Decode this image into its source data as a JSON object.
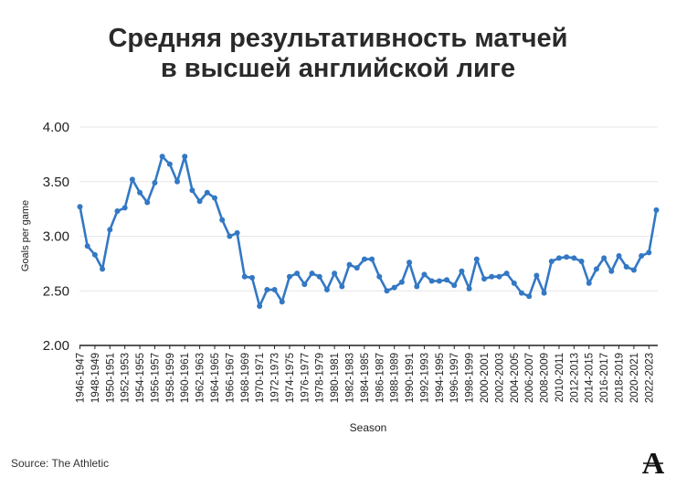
{
  "title_lines": [
    "Средняя результативность матчей",
    "в высшей английской лиге"
  ],
  "source": "Source: The Athletic",
  "logo_letter": "A",
  "colors": {
    "line": "#3378c4",
    "grid": "#e6e6e6",
    "axis": "#222222",
    "text": "#222222"
  },
  "chart_data": {
    "type": "line",
    "title": "Средняя результативность матчей в высшей английской лиге",
    "xlabel": "Season",
    "ylabel": "Goals per game",
    "ylim": [
      2.0,
      4.0
    ],
    "yticks": [
      "2.00",
      "2.50",
      "3.00",
      "3.50",
      "4.00"
    ],
    "grid": true,
    "x_tick_labels": [
      "1946-1947",
      "1948-1949",
      "1950-1951",
      "1952-1953",
      "1954-1955",
      "1956-1957",
      "1958-1959",
      "1960-1961",
      "1962-1963",
      "1964-1965",
      "1966-1967",
      "1968-1969",
      "1970-1971",
      "1972-1973",
      "1974-1975",
      "1976-1977",
      "1978-1979",
      "1980-1981",
      "1982-1983",
      "1984-1985",
      "1986-1987",
      "1988-1989",
      "1990-1991",
      "1992-1993",
      "1994-1995",
      "1996-1997",
      "1998-1999",
      "2000-2001",
      "2002-2003",
      "2004-2005",
      "2006-2007",
      "2008-2009",
      "2010-2011",
      "2012-2013",
      "2014-2015",
      "2016-2017",
      "2018-2019",
      "2020-2021",
      "2022-2023"
    ],
    "x": [
      "1946-1947",
      "1947-1948",
      "1948-1949",
      "1949-1950",
      "1950-1951",
      "1951-1952",
      "1952-1953",
      "1953-1954",
      "1954-1955",
      "1955-1956",
      "1956-1957",
      "1957-1958",
      "1958-1959",
      "1959-1960",
      "1960-1961",
      "1961-1962",
      "1962-1963",
      "1963-1964",
      "1964-1965",
      "1965-1966",
      "1966-1967",
      "1967-1968",
      "1968-1969",
      "1969-1970",
      "1970-1971",
      "1971-1972",
      "1972-1973",
      "1973-1974",
      "1974-1975",
      "1975-1976",
      "1976-1977",
      "1977-1978",
      "1978-1979",
      "1979-1980",
      "1980-1981",
      "1981-1982",
      "1982-1983",
      "1983-1984",
      "1984-1985",
      "1985-1986",
      "1986-1987",
      "1987-1988",
      "1988-1989",
      "1989-1990",
      "1990-1991",
      "1991-1992",
      "1992-1993",
      "1993-1994",
      "1994-1995",
      "1995-1996",
      "1996-1997",
      "1997-1998",
      "1998-1999",
      "1999-2000",
      "2000-2001",
      "2001-2002",
      "2002-2003",
      "2003-2004",
      "2004-2005",
      "2005-2006",
      "2006-2007",
      "2007-2008",
      "2008-2009",
      "2009-2010",
      "2010-2011",
      "2011-2012",
      "2012-2013",
      "2013-2014",
      "2014-2015",
      "2015-2016",
      "2016-2017",
      "2017-2018",
      "2018-2019",
      "2019-2020",
      "2020-2021",
      "2021-2022",
      "2022-2023",
      "2023-2024"
    ],
    "series": [
      {
        "values": [
          3.27,
          2.91,
          2.83,
          2.7,
          3.06,
          3.23,
          3.26,
          3.52,
          3.4,
          3.31,
          3.49,
          3.73,
          3.66,
          3.5,
          3.73,
          3.42,
          3.32,
          3.4,
          3.35,
          3.15,
          3.0,
          3.03,
          2.63,
          2.62,
          2.36,
          2.51,
          2.51,
          2.4,
          2.63,
          2.66,
          2.56,
          2.66,
          2.63,
          2.51,
          2.66,
          2.54,
          2.74,
          2.71,
          2.79,
          2.79,
          2.63,
          2.5,
          2.53,
          2.58,
          2.76,
          2.54,
          2.65,
          2.59,
          2.59,
          2.6,
          2.55,
          2.68,
          2.52,
          2.79,
          2.61,
          2.63,
          2.63,
          2.66,
          2.57,
          2.48,
          2.45,
          2.64,
          2.48,
          2.77,
          2.8,
          2.81,
          2.8,
          2.77,
          2.57,
          2.7,
          2.8,
          2.68,
          2.82,
          2.72,
          2.69,
          2.82,
          2.85,
          3.24
        ]
      }
    ]
  }
}
